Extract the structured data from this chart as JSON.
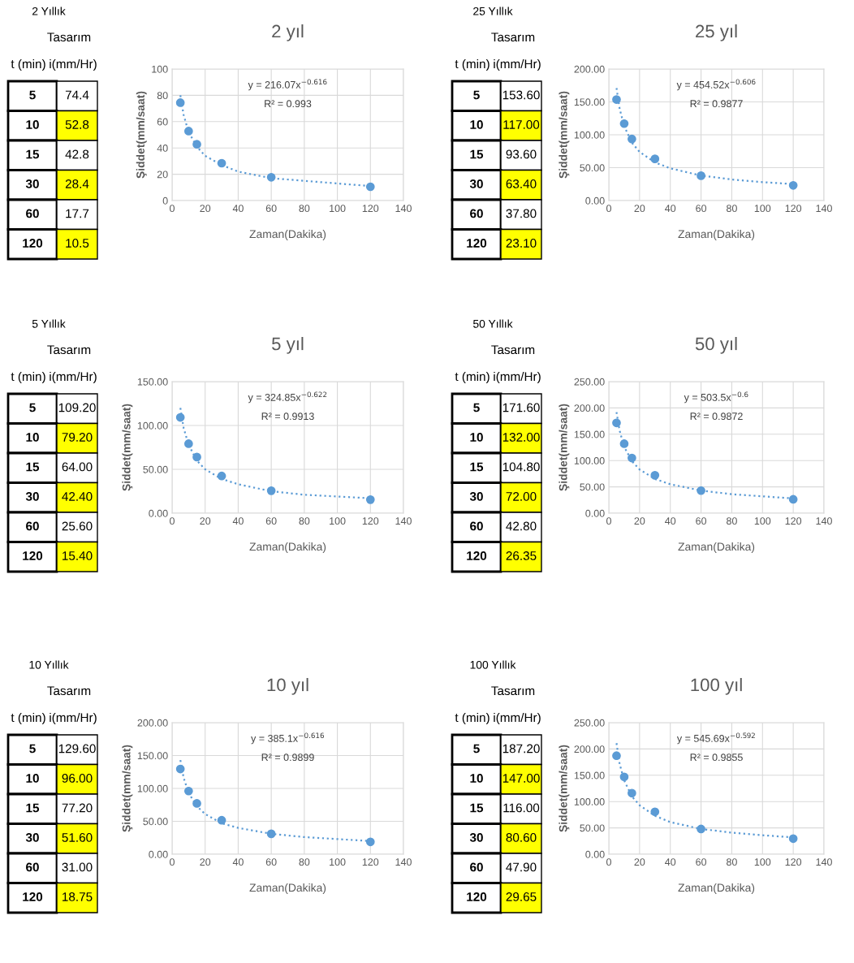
{
  "chart_data": [
    {
      "type": "other",
      "annotations": [
        "2 Yıllık",
        "Tasarım",
        "t (min)",
        "i(mm/Hr)",
        "5",
        "74.4",
        "10",
        "52.8",
        "15",
        "42.8",
        "30",
        "28.4",
        "60",
        "17.7",
        "120",
        "10.5"
      ]
    },
    {
      "type": "scatter",
      "title": "2 yıl",
      "xlabel": "Zaman(Dakika)",
      "ylabel": "Şiddet(mm/saat)",
      "xlim": [
        0,
        140
      ],
      "xticks": [
        0,
        20,
        40,
        60,
        80,
        100,
        120,
        140
      ],
      "ylim": [
        0,
        100
      ],
      "yticks": [
        0,
        20,
        40,
        60,
        80,
        100
      ],
      "grid": true,
      "annotations": [
        "y = 216.07x$^{−0.616}$",
        "R² = 0.993"
      ],
      "series": [
        {
          "marker": "circle",
          "color": "#5b9bd5",
          "x": [
            5,
            10,
            15,
            30,
            60,
            120
          ],
          "values": [
            74.4,
            52.8,
            42.8,
            28.4,
            17.7,
            10.5
          ]
        },
        {
          "type": "line",
          "marker": "none",
          "line_style": "dotted",
          "color": "#5b9bd5",
          "x": [
            5,
            7,
            10,
            15,
            20,
            30,
            40,
            60,
            80,
            100,
            120
          ],
          "values": [
            80,
            65,
            52,
            41,
            34,
            27,
            22,
            17,
            15,
            13,
            11
          ]
        }
      ]
    },
    {
      "type": "other",
      "annotations": [
        "25 Yıllık",
        "Tasarım",
        "t (min)",
        "i(mm/Hr)",
        "5",
        "153.60",
        "10",
        "117.00",
        "15",
        "93.60",
        "30",
        "63.40",
        "60",
        "37.80",
        "120",
        "23.10"
      ]
    },
    {
      "type": "scatter",
      "title": "25 yıl",
      "xlabel": "Zaman(Dakika)",
      "ylabel": "Şiddet(mm/saat)",
      "xlim": [
        0,
        140
      ],
      "xticks": [
        0,
        20,
        40,
        60,
        80,
        100,
        120,
        140
      ],
      "ylim": [
        0,
        200
      ],
      "yticks": [
        {
          "value": 0,
          "label": "0.00"
        },
        {
          "value": 50,
          "label": "50.00"
        },
        {
          "value": 100,
          "label": "100.00"
        },
        {
          "value": 150,
          "label": "150.00"
        },
        {
          "value": 200,
          "label": "200.00"
        }
      ],
      "grid": true,
      "annotations": [
        "y = 454.52x$^{−0.606}$",
        "R² = 0.9877"
      ],
      "series": [
        {
          "marker": "circle",
          "color": "#5b9bd5",
          "x": [
            5,
            10,
            15,
            30,
            60,
            120
          ],
          "values": [
            153.6,
            117.0,
            93.6,
            63.4,
            37.8,
            23.1
          ]
        },
        {
          "type": "line",
          "marker": "none",
          "line_style": "dotted",
          "color": "#5b9bd5",
          "x": [
            5,
            7,
            10,
            15,
            20,
            30,
            40,
            60,
            80,
            100,
            120
          ],
          "values": [
            171,
            140,
            113,
            88,
            74,
            58,
            49,
            38,
            32,
            28,
            25
          ]
        }
      ]
    },
    {
      "type": "other",
      "annotations": [
        "5 Yıllık",
        "Tasarım",
        "t (min)",
        "i(mm/Hr)",
        "5",
        "109.20",
        "10",
        "79.20",
        "15",
        "64.00",
        "30",
        "42.40",
        "60",
        "25.60",
        "120",
        "15.40"
      ]
    },
    {
      "type": "scatter",
      "title": "5 yıl",
      "xlabel": "Zaman(Dakika)",
      "ylabel": "Şiddet(mm/saat)",
      "xlim": [
        0,
        140
      ],
      "xticks": [
        0,
        20,
        40,
        60,
        80,
        100,
        120,
        140
      ],
      "ylim": [
        0,
        150
      ],
      "yticks": [
        {
          "value": 0,
          "label": "0.00"
        },
        {
          "value": 50,
          "label": "50.00"
        },
        {
          "value": 100,
          "label": "100.00"
        },
        {
          "value": 150,
          "label": "150.00"
        }
      ],
      "grid": true,
      "annotations": [
        "y = 324.85x$^{−0.622}$",
        "R² = 0.9913"
      ],
      "series": [
        {
          "marker": "circle",
          "color": "#5b9bd5",
          "x": [
            5,
            10,
            15,
            30,
            60,
            120
          ],
          "values": [
            109.2,
            79.2,
            64.0,
            42.4,
            25.6,
            15.4
          ]
        },
        {
          "type": "line",
          "marker": "none",
          "line_style": "dotted",
          "color": "#5b9bd5",
          "x": [
            5,
            7,
            10,
            15,
            20,
            30,
            40,
            60,
            80,
            100,
            120
          ],
          "values": [
            120,
            97,
            78,
            60,
            50,
            39,
            33,
            25,
            21,
            19,
            17
          ]
        }
      ]
    },
    {
      "type": "other",
      "annotations": [
        "50 Yıllık",
        "Tasarım",
        "t (min)",
        "i(mm/Hr)",
        "5",
        "171.60",
        "10",
        "132.00",
        "15",
        "104.80",
        "30",
        "72.00",
        "60",
        "42.80",
        "120",
        "26.35"
      ]
    },
    {
      "type": "scatter",
      "title": "50 yıl",
      "xlabel": "Zaman(Dakika)",
      "ylabel": "Şiddet(mm/saat)",
      "xlim": [
        0,
        140
      ],
      "xticks": [
        0,
        20,
        40,
        60,
        80,
        100,
        120,
        140
      ],
      "ylim": [
        0,
        250
      ],
      "yticks": [
        {
          "value": 0,
          "label": "0.00"
        },
        {
          "value": 50,
          "label": "50.00"
        },
        {
          "value": 100,
          "label": "100.00"
        },
        {
          "value": 150,
          "label": "150.00"
        },
        {
          "value": 200,
          "label": "200.00"
        },
        {
          "value": 250,
          "label": "250.00"
        }
      ],
      "grid": true,
      "annotations": [
        "y = 503.5x$^{−0.6}$",
        "R² = 0.9872"
      ],
      "series": [
        {
          "marker": "circle",
          "color": "#5b9bd5",
          "x": [
            5,
            10,
            15,
            30,
            60,
            120
          ],
          "values": [
            171.6,
            132.0,
            104.8,
            72.0,
            42.8,
            26.35
          ]
        },
        {
          "type": "line",
          "marker": "none",
          "line_style": "dotted",
          "color": "#5b9bd5",
          "x": [
            5,
            7,
            10,
            15,
            20,
            30,
            40,
            60,
            80,
            100,
            120
          ],
          "values": [
            192,
            157,
            126,
            99,
            83,
            65,
            55,
            43,
            36,
            32,
            28
          ]
        }
      ]
    },
    {
      "type": "other",
      "annotations": [
        "10 Yıllık",
        "Tasarım",
        "t (min)",
        "i(mm/Hr)",
        "5",
        "129.60",
        "10",
        "96.00",
        "15",
        "77.20",
        "30",
        "51.60",
        "60",
        "31.00",
        "120",
        "18.75"
      ]
    },
    {
      "type": "scatter",
      "title": "10 yıl",
      "xlabel": "Zaman(Dakika)",
      "ylabel": "Şiddet(mm/saat)",
      "xlim": [
        0,
        140
      ],
      "xticks": [
        0,
        20,
        40,
        60,
        80,
        100,
        120,
        140
      ],
      "ylim": [
        0,
        200
      ],
      "yticks": [
        {
          "value": 0,
          "label": "0.00"
        },
        {
          "value": 50,
          "label": "50.00"
        },
        {
          "value": 100,
          "label": "100.00"
        },
        {
          "value": 150,
          "label": "150.00"
        },
        {
          "value": 200,
          "label": "200.00"
        }
      ],
      "grid": true,
      "annotations": [
        "y = 385.1x$^{−0.616}$",
        "R² = 0.9899"
      ],
      "series": [
        {
          "marker": "circle",
          "color": "#5b9bd5",
          "x": [
            5,
            10,
            15,
            30,
            60,
            120
          ],
          "values": [
            129.6,
            96.0,
            77.2,
            51.6,
            31.0,
            18.75
          ]
        },
        {
          "type": "line",
          "marker": "none",
          "line_style": "dotted",
          "color": "#5b9bd5",
          "x": [
            5,
            7,
            10,
            15,
            20,
            30,
            40,
            60,
            80,
            100,
            120
          ],
          "values": [
            143,
            116,
            93,
            73,
            61,
            47,
            40,
            31,
            26,
            23,
            20
          ]
        }
      ]
    },
    {
      "type": "other",
      "annotations": [
        "100 Yıllık",
        "Tasarım",
        "t (min)",
        "i(mm/Hr)",
        "5",
        "187.20",
        "10",
        "147.00",
        "15",
        "116.00",
        "30",
        "80.60",
        "60",
        "47.90",
        "120",
        "29.65"
      ]
    },
    {
      "type": "scatter",
      "title": "100 yıl",
      "xlabel": "Zaman(Dakika)",
      "ylabel": "Şiddet(mm/saat)",
      "xlim": [
        0,
        140
      ],
      "xticks": [
        0,
        20,
        40,
        60,
        80,
        100,
        120,
        140
      ],
      "ylim": [
        0,
        250
      ],
      "yticks": [
        {
          "value": 0,
          "label": "0.00"
        },
        {
          "value": 50,
          "label": "50.00"
        },
        {
          "value": 100,
          "label": "100.00"
        },
        {
          "value": 150,
          "label": "150.00"
        },
        {
          "value": 200,
          "label": "200.00"
        },
        {
          "value": 250,
          "label": "250.00"
        }
      ],
      "grid": true,
      "annotations": [
        "y = 545.69x$^{−0.592}$",
        "R² = 0.9855"
      ],
      "series": [
        {
          "marker": "circle",
          "color": "#5b9bd5",
          "x": [
            5,
            10,
            15,
            30,
            60,
            120
          ],
          "values": [
            187.2,
            147.0,
            116.0,
            80.6,
            47.9,
            29.65
          ]
        },
        {
          "type": "line",
          "marker": "none",
          "line_style": "dotted",
          "color": "#5b9bd5",
          "x": [
            5,
            7,
            10,
            15,
            20,
            30,
            40,
            60,
            80,
            100,
            120
          ],
          "values": [
            211,
            172,
            140,
            110,
            93,
            73,
            61,
            48,
            41,
            36,
            32
          ]
        }
      ]
    }
  ]
}
